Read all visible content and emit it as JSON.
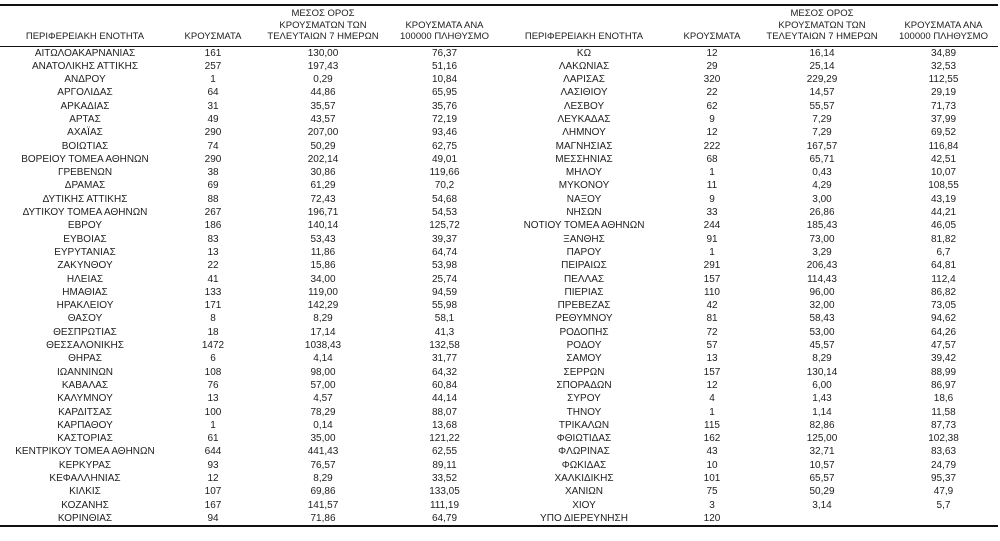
{
  "table": {
    "headers": {
      "region": "ΠΕΡΙΦΕΡΕΙΑΚΗ ΕΝΟΤΗΤΑ",
      "cases": "ΚΡΟΥΣΜΑΤΑ",
      "avg7": "ΜΕΣΟΣ ΟΡΟΣ ΚΡΟΥΣΜΑΤΩΝ ΤΩΝ ΤΕΛΕΥΤΑΙΩΝ 7 ΗΜΕΡΩΝ",
      "per100k": "ΚΡΟΥΣΜΑΤΑ ΑΝΑ 100000 ΠΛΗΘΥΣΜΟ"
    },
    "left_rows": [
      {
        "region": "ΑΙΤΩΛΟΑΚΑΡΝΑΝΙΑΣ",
        "cases": "161",
        "avg7": "130,00",
        "per100k": "76,37"
      },
      {
        "region": "ΑΝΑΤΟΛΙΚΗΣ ΑΤΤΙΚΗΣ",
        "cases": "257",
        "avg7": "197,43",
        "per100k": "51,16"
      },
      {
        "region": "ΑΝΔΡΟΥ",
        "cases": "1",
        "avg7": "0,29",
        "per100k": "10,84"
      },
      {
        "region": "ΑΡΓΟΛΙΔΑΣ",
        "cases": "64",
        "avg7": "44,86",
        "per100k": "65,95"
      },
      {
        "region": "ΑΡΚΑΔΙΑΣ",
        "cases": "31",
        "avg7": "35,57",
        "per100k": "35,76"
      },
      {
        "region": "ΑΡΤΑΣ",
        "cases": "49",
        "avg7": "43,57",
        "per100k": "72,19"
      },
      {
        "region": "ΑΧΑΪΑΣ",
        "cases": "290",
        "avg7": "207,00",
        "per100k": "93,46"
      },
      {
        "region": "ΒΟΙΩΤΙΑΣ",
        "cases": "74",
        "avg7": "50,29",
        "per100k": "62,75"
      },
      {
        "region": "ΒΟΡΕΙΟΥ ΤΟΜΕΑ ΑΘΗΝΩΝ",
        "cases": "290",
        "avg7": "202,14",
        "per100k": "49,01"
      },
      {
        "region": "ΓΡΕΒΕΝΩΝ",
        "cases": "38",
        "avg7": "30,86",
        "per100k": "119,66"
      },
      {
        "region": "ΔΡΑΜΑΣ",
        "cases": "69",
        "avg7": "61,29",
        "per100k": "70,2"
      },
      {
        "region": "ΔΥΤΙΚΗΣ ΑΤΤΙΚΗΣ",
        "cases": "88",
        "avg7": "72,43",
        "per100k": "54,68"
      },
      {
        "region": "ΔΥΤΙΚΟΥ ΤΟΜΕΑ ΑΘΗΝΩΝ",
        "cases": "267",
        "avg7": "196,71",
        "per100k": "54,53"
      },
      {
        "region": "ΕΒΡΟΥ",
        "cases": "186",
        "avg7": "140,14",
        "per100k": "125,72"
      },
      {
        "region": "ΕΥΒΟΙΑΣ",
        "cases": "83",
        "avg7": "53,43",
        "per100k": "39,37"
      },
      {
        "region": "ΕΥΡΥΤΑΝΙΑΣ",
        "cases": "13",
        "avg7": "11,86",
        "per100k": "64,74"
      },
      {
        "region": "ΖΑΚΥΝΘΟΥ",
        "cases": "22",
        "avg7": "15,86",
        "per100k": "53,98"
      },
      {
        "region": "ΗΛΕΙΑΣ",
        "cases": "41",
        "avg7": "34,00",
        "per100k": "25,74"
      },
      {
        "region": "ΗΜΑΘΙΑΣ",
        "cases": "133",
        "avg7": "119,00",
        "per100k": "94,59"
      },
      {
        "region": "ΗΡΑΚΛΕΙΟΥ",
        "cases": "171",
        "avg7": "142,29",
        "per100k": "55,98"
      },
      {
        "region": "ΘΑΣΟΥ",
        "cases": "8",
        "avg7": "8,29",
        "per100k": "58,1"
      },
      {
        "region": "ΘΕΣΠΡΩΤΙΑΣ",
        "cases": "18",
        "avg7": "17,14",
        "per100k": "41,3"
      },
      {
        "region": "ΘΕΣΣΑΛΟΝΙΚΗΣ",
        "cases": "1472",
        "avg7": "1038,43",
        "per100k": "132,58"
      },
      {
        "region": "ΘΗΡΑΣ",
        "cases": "6",
        "avg7": "4,14",
        "per100k": "31,77"
      },
      {
        "region": "ΙΩΑΝΝΙΝΩΝ",
        "cases": "108",
        "avg7": "98,00",
        "per100k": "64,32"
      },
      {
        "region": "ΚΑΒΑΛΑΣ",
        "cases": "76",
        "avg7": "57,00",
        "per100k": "60,84"
      },
      {
        "region": "ΚΑΛΥΜΝΟΥ",
        "cases": "13",
        "avg7": "4,57",
        "per100k": "44,14"
      },
      {
        "region": "ΚΑΡΔΙΤΣΑΣ",
        "cases": "100",
        "avg7": "78,29",
        "per100k": "88,07"
      },
      {
        "region": "ΚΑΡΠΑΘΟΥ",
        "cases": "1",
        "avg7": "0,14",
        "per100k": "13,68"
      },
      {
        "region": "ΚΑΣΤΟΡΙΑΣ",
        "cases": "61",
        "avg7": "35,00",
        "per100k": "121,22"
      },
      {
        "region": "ΚΕΝΤΡΙΚΟΥ ΤΟΜΕΑ ΑΘΗΝΩΝ",
        "cases": "644",
        "avg7": "441,43",
        "per100k": "62,55"
      },
      {
        "region": "ΚΕΡΚΥΡΑΣ",
        "cases": "93",
        "avg7": "76,57",
        "per100k": "89,11"
      },
      {
        "region": "ΚΕΦΑΛΛΗΝΙΑΣ",
        "cases": "12",
        "avg7": "8,29",
        "per100k": "33,52"
      },
      {
        "region": "ΚΙΛΚΙΣ",
        "cases": "107",
        "avg7": "69,86",
        "per100k": "133,05"
      },
      {
        "region": "ΚΟΖΑΝΗΣ",
        "cases": "167",
        "avg7": "141,57",
        "per100k": "111,19"
      },
      {
        "region": "ΚΟΡΙΝΘΙΑΣ",
        "cases": "94",
        "avg7": "71,86",
        "per100k": "64,79"
      }
    ],
    "right_rows": [
      {
        "region": "ΚΩ",
        "cases": "12",
        "avg7": "16,14",
        "per100k": "34,89"
      },
      {
        "region": "ΛΑΚΩΝΙΑΣ",
        "cases": "29",
        "avg7": "25,14",
        "per100k": "32,53"
      },
      {
        "region": "ΛΑΡΙΣΑΣ",
        "cases": "320",
        "avg7": "229,29",
        "per100k": "112,55"
      },
      {
        "region": "ΛΑΣΙΘΙΟΥ",
        "cases": "22",
        "avg7": "14,57",
        "per100k": "29,19"
      },
      {
        "region": "ΛΕΣΒΟΥ",
        "cases": "62",
        "avg7": "55,57",
        "per100k": "71,73"
      },
      {
        "region": "ΛΕΥΚΑΔΑΣ",
        "cases": "9",
        "avg7": "7,29",
        "per100k": "37,99"
      },
      {
        "region": "ΛΗΜΝΟΥ",
        "cases": "12",
        "avg7": "7,29",
        "per100k": "69,52"
      },
      {
        "region": "ΜΑΓΝΗΣΙΑΣ",
        "cases": "222",
        "avg7": "167,57",
        "per100k": "116,84"
      },
      {
        "region": "ΜΕΣΣΗΝΙΑΣ",
        "cases": "68",
        "avg7": "65,71",
        "per100k": "42,51"
      },
      {
        "region": "ΜΗΛΟΥ",
        "cases": "1",
        "avg7": "0,43",
        "per100k": "10,07"
      },
      {
        "region": "ΜΥΚΟΝΟΥ",
        "cases": "11",
        "avg7": "4,29",
        "per100k": "108,55"
      },
      {
        "region": "ΝΑΞΟΥ",
        "cases": "9",
        "avg7": "3,00",
        "per100k": "43,19"
      },
      {
        "region": "ΝΗΣΩΝ",
        "cases": "33",
        "avg7": "26,86",
        "per100k": "44,21"
      },
      {
        "region": "ΝΟΤΙΟΥ ΤΟΜΕΑ ΑΘΗΝΩΝ",
        "cases": "244",
        "avg7": "185,43",
        "per100k": "46,05"
      },
      {
        "region": "ΞΑΝΘΗΣ",
        "cases": "91",
        "avg7": "73,00",
        "per100k": "81,82"
      },
      {
        "region": "ΠΑΡΟΥ",
        "cases": "1",
        "avg7": "3,29",
        "per100k": "6,7"
      },
      {
        "region": "ΠΕΙΡΑΙΩΣ",
        "cases": "291",
        "avg7": "206,43",
        "per100k": "64,81"
      },
      {
        "region": "ΠΕΛΛΑΣ",
        "cases": "157",
        "avg7": "114,43",
        "per100k": "112,4"
      },
      {
        "region": "ΠΙΕΡΙΑΣ",
        "cases": "110",
        "avg7": "96,00",
        "per100k": "86,82"
      },
      {
        "region": "ΠΡΕΒΕΖΑΣ",
        "cases": "42",
        "avg7": "32,00",
        "per100k": "73,05"
      },
      {
        "region": "ΡΕΘΥΜΝΟΥ",
        "cases": "81",
        "avg7": "58,43",
        "per100k": "94,62"
      },
      {
        "region": "ΡΟΔΟΠΗΣ",
        "cases": "72",
        "avg7": "53,00",
        "per100k": "64,26"
      },
      {
        "region": "ΡΟΔΟΥ",
        "cases": "57",
        "avg7": "45,57",
        "per100k": "47,57"
      },
      {
        "region": "ΣΑΜΟΥ",
        "cases": "13",
        "avg7": "8,29",
        "per100k": "39,42"
      },
      {
        "region": "ΣΕΡΡΩΝ",
        "cases": "157",
        "avg7": "130,14",
        "per100k": "88,99"
      },
      {
        "region": "ΣΠΟΡΑΔΩΝ",
        "cases": "12",
        "avg7": "6,00",
        "per100k": "86,97"
      },
      {
        "region": "ΣΥΡΟΥ",
        "cases": "4",
        "avg7": "1,43",
        "per100k": "18,6"
      },
      {
        "region": "ΤΗΝΟΥ",
        "cases": "1",
        "avg7": "1,14",
        "per100k": "11,58"
      },
      {
        "region": "ΤΡΙΚΑΛΩΝ",
        "cases": "115",
        "avg7": "82,86",
        "per100k": "87,73"
      },
      {
        "region": "ΦΘΙΩΤΙΔΑΣ",
        "cases": "162",
        "avg7": "125,00",
        "per100k": "102,38"
      },
      {
        "region": "ΦΛΩΡΙΝΑΣ",
        "cases": "43",
        "avg7": "32,71",
        "per100k": "83,63"
      },
      {
        "region": "ΦΩΚΙΔΑΣ",
        "cases": "10",
        "avg7": "10,57",
        "per100k": "24,79"
      },
      {
        "region": "ΧΑΛΚΙΔΙΚΗΣ",
        "cases": "101",
        "avg7": "65,57",
        "per100k": "95,37"
      },
      {
        "region": "ΧΑΝΙΩΝ",
        "cases": "75",
        "avg7": "50,29",
        "per100k": "47,9"
      },
      {
        "region": "ΧΙΟΥ",
        "cases": "3",
        "avg7": "3,14",
        "per100k": "5,7"
      },
      {
        "region": "ΥΠΟ ΔΙΕΡΕΥΝΗΣΗ",
        "cases": "120",
        "avg7": "",
        "per100k": ""
      }
    ]
  }
}
